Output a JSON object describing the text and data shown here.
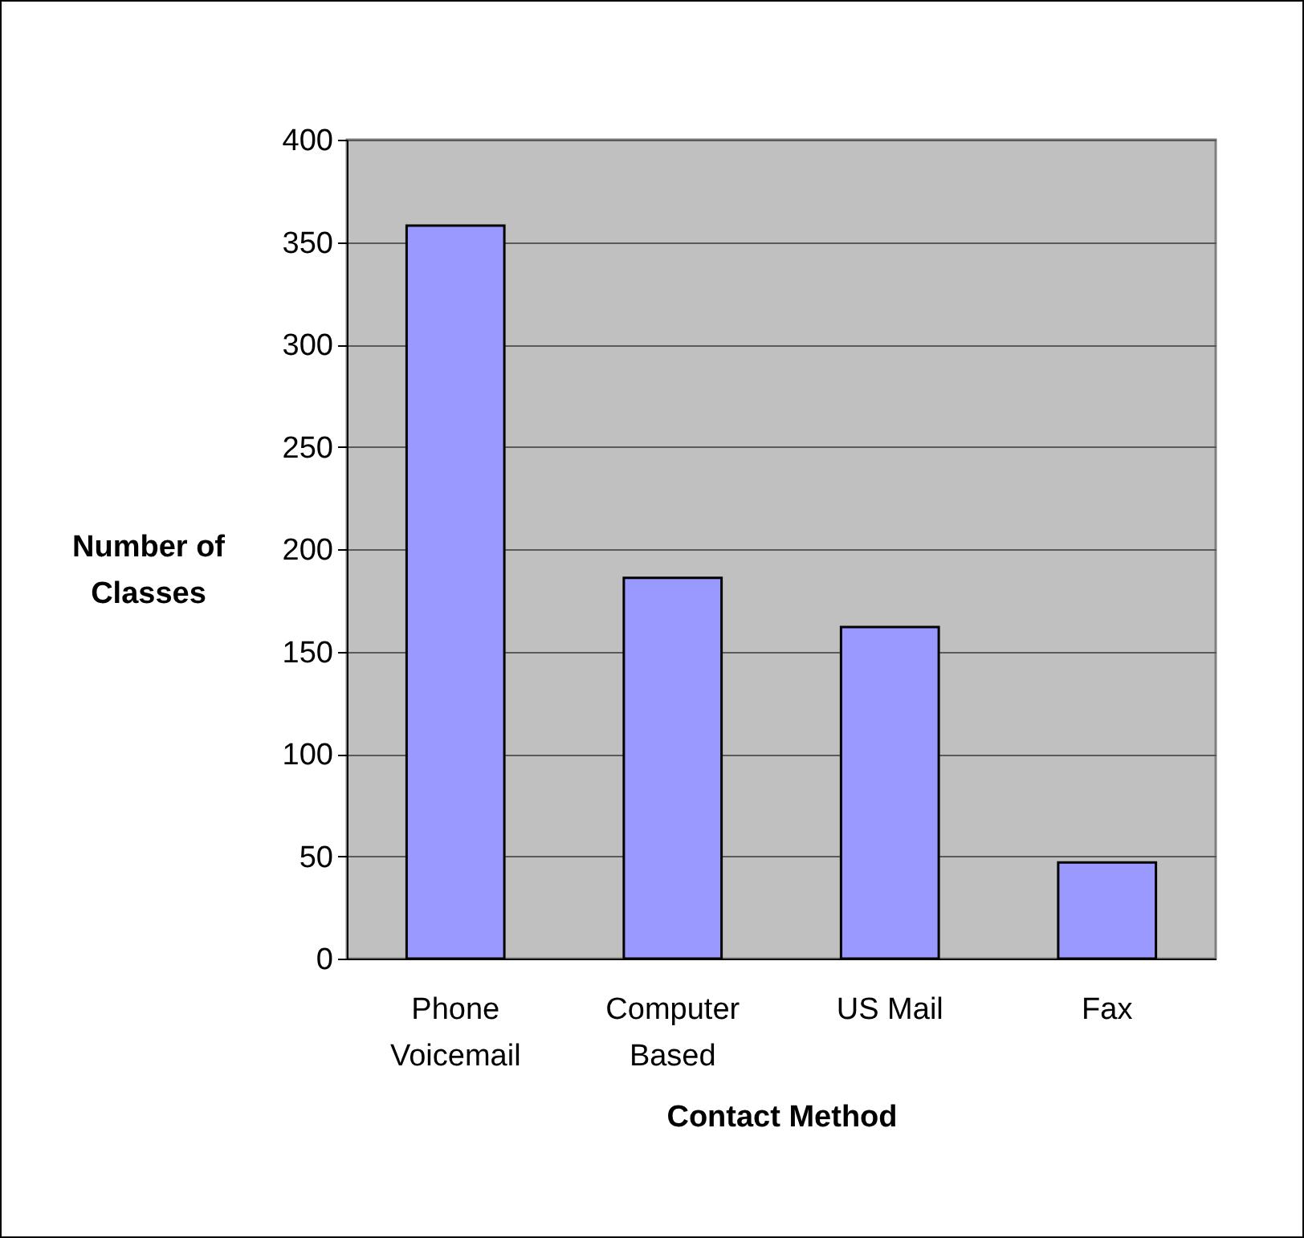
{
  "chart_data": {
    "type": "bar",
    "xlabel": "Contact Method",
    "ylabel": "Number of Classes",
    "categories": [
      "Phone Voicemail",
      "Computer Based",
      "US Mail",
      "Fax"
    ],
    "values": [
      358,
      186,
      162,
      47
    ],
    "color": "#9999ff",
    "ylim": [
      0,
      400
    ],
    "yticks": [
      0,
      50,
      100,
      150,
      200,
      250,
      300,
      350,
      400
    ],
    "grid": "y"
  }
}
